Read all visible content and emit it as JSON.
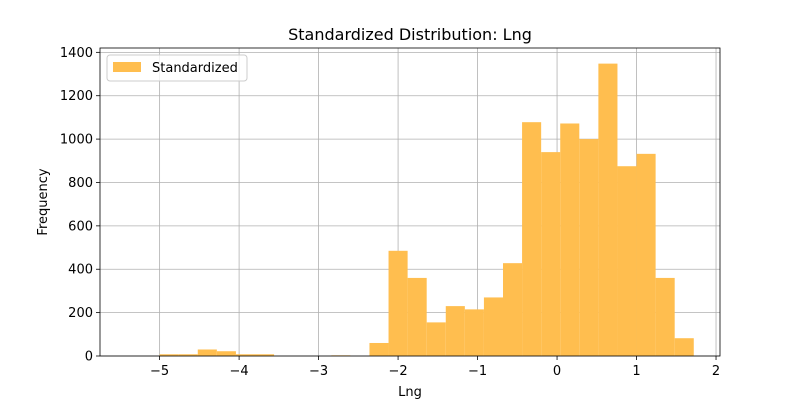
{
  "chart_data": {
    "type": "bar",
    "title": "Standardized Distribution: Lng",
    "xlabel": "Lng",
    "ylabel": "Frequency",
    "xlim": [
      -5.75,
      2.05
    ],
    "ylim": [
      0,
      1420
    ],
    "xticks": [
      -5,
      -4,
      -3,
      -2,
      -1,
      0,
      1,
      2
    ],
    "xtick_labels": [
      "−5",
      "−4",
      "−3",
      "−2",
      "−1",
      "0",
      "1",
      "2"
    ],
    "yticks": [
      0,
      200,
      400,
      600,
      800,
      1000,
      1200,
      1400
    ],
    "grid": true,
    "legend_position": "top-left",
    "bar_color": "#FFBE4F",
    "series": [
      {
        "name": "Standardized",
        "bins": [
          {
            "x0": -5.0,
            "x1": -4.76,
            "count": 8
          },
          {
            "x0": -4.76,
            "x1": -4.52,
            "count": 8
          },
          {
            "x0": -4.52,
            "x1": -4.28,
            "count": 30
          },
          {
            "x0": -4.28,
            "x1": -4.04,
            "count": 22
          },
          {
            "x0": -4.04,
            "x1": -3.8,
            "count": 8
          },
          {
            "x0": -3.8,
            "x1": -3.56,
            "count": 8
          },
          {
            "x0": -2.84,
            "x1": -2.6,
            "count": 3
          },
          {
            "x0": -2.36,
            "x1": -2.12,
            "count": 60
          },
          {
            "x0": -2.12,
            "x1": -1.88,
            "count": 485
          },
          {
            "x0": -1.88,
            "x1": -1.64,
            "count": 360
          },
          {
            "x0": -1.64,
            "x1": -1.4,
            "count": 155
          },
          {
            "x0": -1.4,
            "x1": -1.16,
            "count": 230
          },
          {
            "x0": -1.16,
            "x1": -0.92,
            "count": 215
          },
          {
            "x0": -0.92,
            "x1": -0.68,
            "count": 270
          },
          {
            "x0": -0.68,
            "x1": -0.44,
            "count": 428
          },
          {
            "x0": -0.44,
            "x1": -0.2,
            "count": 1078
          },
          {
            "x0": -0.2,
            "x1": 0.04,
            "count": 940
          },
          {
            "x0": 0.04,
            "x1": 0.28,
            "count": 1072
          },
          {
            "x0": 0.28,
            "x1": 0.52,
            "count": 1000
          },
          {
            "x0": 0.52,
            "x1": 0.76,
            "count": 1348
          },
          {
            "x0": 0.76,
            "x1": 1.0,
            "count": 875
          },
          {
            "x0": 1.0,
            "x1": 1.24,
            "count": 932
          },
          {
            "x0": 1.24,
            "x1": 1.48,
            "count": 360
          },
          {
            "x0": 1.48,
            "x1": 1.72,
            "count": 82
          }
        ]
      }
    ]
  }
}
